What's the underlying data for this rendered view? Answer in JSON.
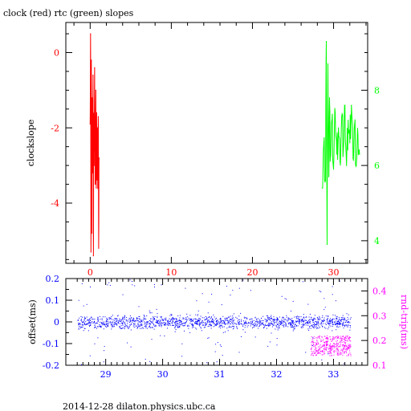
{
  "title": "clock (red) rtc (green) slopes",
  "footer": "2014-12-28 dilaton.physics.ubc.ca",
  "colors": {
    "red": "#ff0000",
    "green": "#00ff00",
    "blue": "#0000ff",
    "magenta": "#ff00ff",
    "axis": "#000000"
  },
  "chart_data": [
    {
      "type": "line",
      "title": "clock (red) rtc (green) slopes",
      "ylabel": "clockslope",
      "xlim": [
        -3,
        34.2
      ],
      "ylim": [
        -5.6,
        0.8
      ],
      "y2lim": [
        3.4,
        9.8
      ],
      "xticks": [
        "0",
        "10",
        "20",
        "30"
      ],
      "xtick_values": [
        0,
        10,
        20,
        30
      ],
      "yticks": [
        "0",
        "-2",
        "-4"
      ],
      "ytick_values": [
        0,
        -2,
        -4
      ],
      "y2ticks": [
        "8",
        "6",
        "4"
      ],
      "y2tick_values": [
        8,
        6,
        4
      ],
      "series": [
        {
          "color": "red",
          "axis": "left",
          "x": [
            0,
            0.05,
            0.1,
            0.15,
            0.2,
            0.25,
            0.3,
            0.35,
            0.4,
            0.45,
            0.5,
            0.55,
            0.6,
            0.65,
            0.7,
            0.75,
            0.8,
            0.85,
            0.9,
            0.95,
            1.0,
            1.05,
            1.1
          ],
          "y": [
            -1.9,
            0.5,
            -5.3,
            -0.2,
            -4.8,
            -1.2,
            -3.2,
            -0.6,
            -5.4,
            -1.8,
            -3.0,
            -0.4,
            -2.6,
            -3.4,
            -1.0,
            -3.6,
            -1.6,
            -3.2,
            -2.0,
            -3.5,
            -1.7,
            -5.2,
            -2.8
          ]
        },
        {
          "color": "green",
          "axis": "right",
          "x": [
            28.6,
            28.8,
            29.0,
            29.1,
            29.2,
            29.3,
            29.4,
            29.5,
            29.6,
            29.8,
            30.0,
            30.2,
            30.4,
            30.6,
            30.8,
            31.0,
            31.2,
            31.4,
            31.6,
            31.8,
            32.0,
            32.2,
            32.4,
            32.6,
            32.8,
            33.0,
            33.2
          ],
          "y": [
            5.4,
            6.6,
            5.6,
            9.3,
            3.9,
            8.7,
            5.7,
            7.8,
            6.2,
            7.2,
            5.9,
            7.4,
            6.3,
            7.0,
            6.1,
            7.3,
            6.4,
            7.6,
            6.0,
            7.2,
            6.6,
            7.6,
            6.2,
            7.1,
            6.0,
            6.8,
            6.3
          ]
        }
      ]
    },
    {
      "type": "scatter",
      "ylabel": "offset(ms)",
      "y2label": "rnd-trip(ms)",
      "xlim": [
        28.3,
        33.6
      ],
      "ylim": [
        -0.2,
        0.2
      ],
      "y2lim": [
        0.1,
        0.45
      ],
      "xticks": [
        "29",
        "30",
        "31",
        "32",
        "33"
      ],
      "xtick_values": [
        29,
        30,
        31,
        32,
        33
      ],
      "yticks": [
        "0.2",
        "0.1",
        "0",
        "-0.1",
        "-0.2"
      ],
      "ytick_values": [
        0.2,
        0.1,
        0,
        -0.1,
        -0.2
      ],
      "y2ticks": [
        "0.4",
        "0.3",
        "0.2",
        "0.1"
      ],
      "y2tick_values": [
        0.4,
        0.3,
        0.2,
        0.1
      ],
      "series": [
        {
          "color": "blue",
          "axis": "left",
          "x_range": [
            28.5,
            33.3
          ],
          "y_center": 0.0,
          "y_spread": 0.03
        },
        {
          "color": "magenta",
          "axis": "right",
          "x_range": [
            32.6,
            33.3
          ],
          "y_center": 0.18,
          "y_spread": 0.04
        }
      ]
    }
  ]
}
